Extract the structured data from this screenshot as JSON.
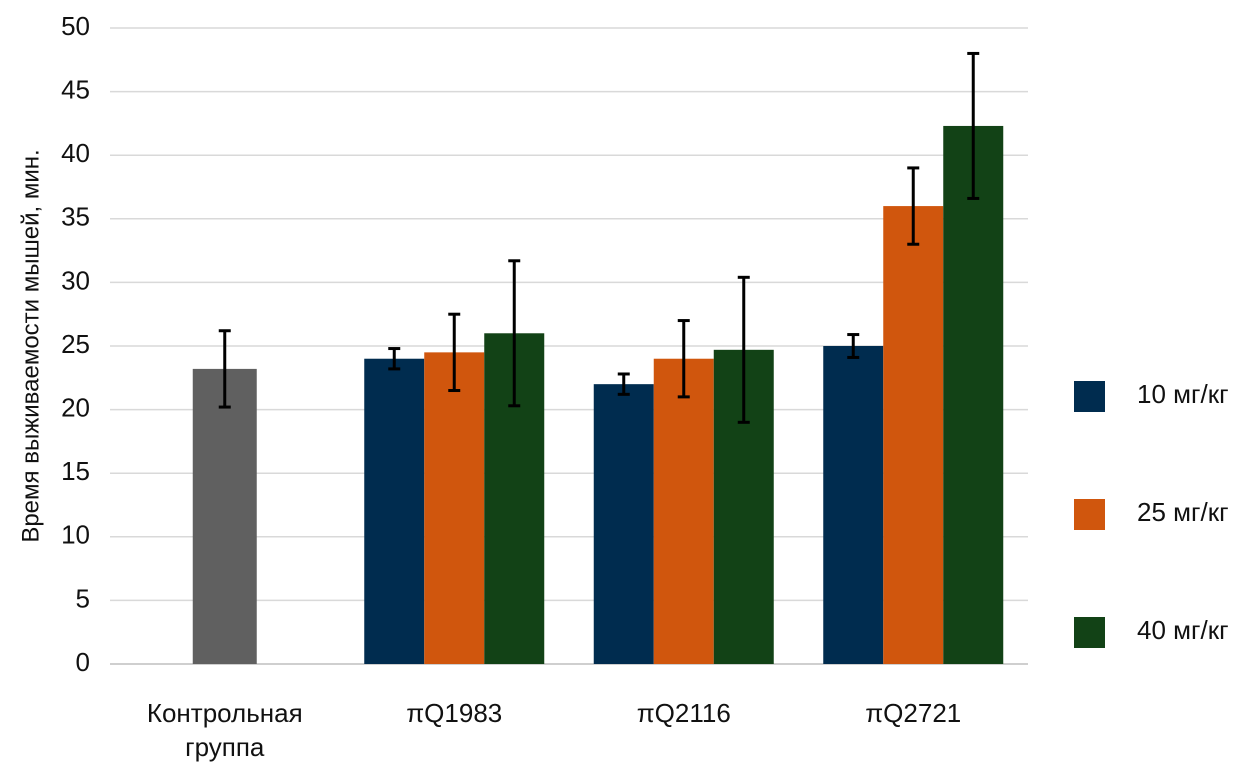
{
  "chart_data": {
    "type": "bar",
    "ylabel": "Время выживаемости мышей, мин.",
    "categories": [
      "Контрольная группа",
      "πQ1983",
      "πQ2116",
      "πQ2721"
    ],
    "control": {
      "value": 23.2,
      "error": 3.0,
      "color": "#606060"
    },
    "series": [
      {
        "name": "10 мг/кг",
        "color": "#002c4f",
        "values": [
          null,
          24.0,
          22.0,
          25.0
        ],
        "errors": [
          null,
          0.8,
          0.8,
          0.9
        ]
      },
      {
        "name": "25 мг/кг",
        "color": "#d0560d",
        "values": [
          null,
          24.5,
          24.0,
          36.0
        ],
        "errors": [
          null,
          3.0,
          3.0,
          3.0
        ]
      },
      {
        "name": "40 мг/кг",
        "color": "#124216",
        "values": [
          null,
          26.0,
          24.7,
          42.3
        ],
        "errors": [
          null,
          5.7,
          5.7,
          5.7
        ]
      }
    ],
    "ylim": [
      0,
      50
    ],
    "yticks": [
      0,
      5,
      10,
      15,
      20,
      25,
      30,
      35,
      40,
      45,
      50
    ],
    "grid": true,
    "legend": "right"
  }
}
